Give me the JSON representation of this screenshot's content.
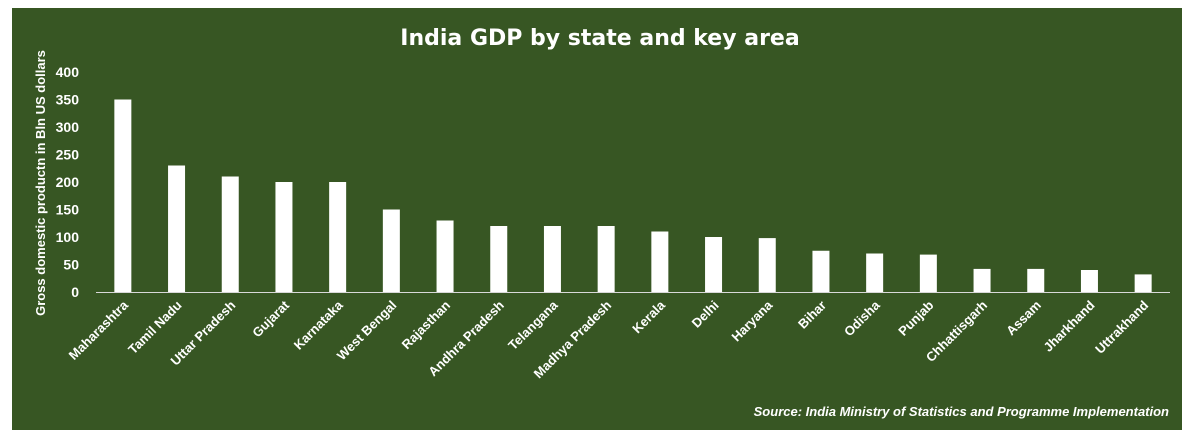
{
  "chart_data": {
    "type": "bar",
    "title": "India GDP by state and key area",
    "ylabel": "Gross domestic productn in Bln US dollars",
    "xlabel": "",
    "source": "Source: India  Ministry of Statistics and Programme Implementation",
    "ylim": [
      0,
      400
    ],
    "yticks": [
      0,
      50,
      100,
      150,
      200,
      250,
      300,
      350,
      400
    ],
    "grid": false,
    "legend": "none",
    "categories": [
      "Maharashtra",
      "Tamil Nadu",
      "Uttar Pradesh",
      "Gujarat",
      "Karnataka",
      "West Bengal",
      "Rajasthan",
      "Andhra Pradesh",
      "Telangana",
      "Madhya Pradesh",
      "Kerala",
      "Delhi",
      "Haryana",
      "Bihar",
      "Odisha",
      "Punjab",
      "Chhattisgarh",
      "Assam",
      "Jharkhand",
      "Uttrakhand"
    ],
    "values": [
      350,
      230,
      210,
      200,
      200,
      150,
      130,
      120,
      120,
      120,
      110,
      100,
      98,
      75,
      70,
      68,
      42,
      42,
      40,
      32
    ],
    "colors": {
      "background": "#375623",
      "bar": "#ffffff",
      "text": "#ffffff",
      "axis": "#d9d9d9"
    }
  }
}
